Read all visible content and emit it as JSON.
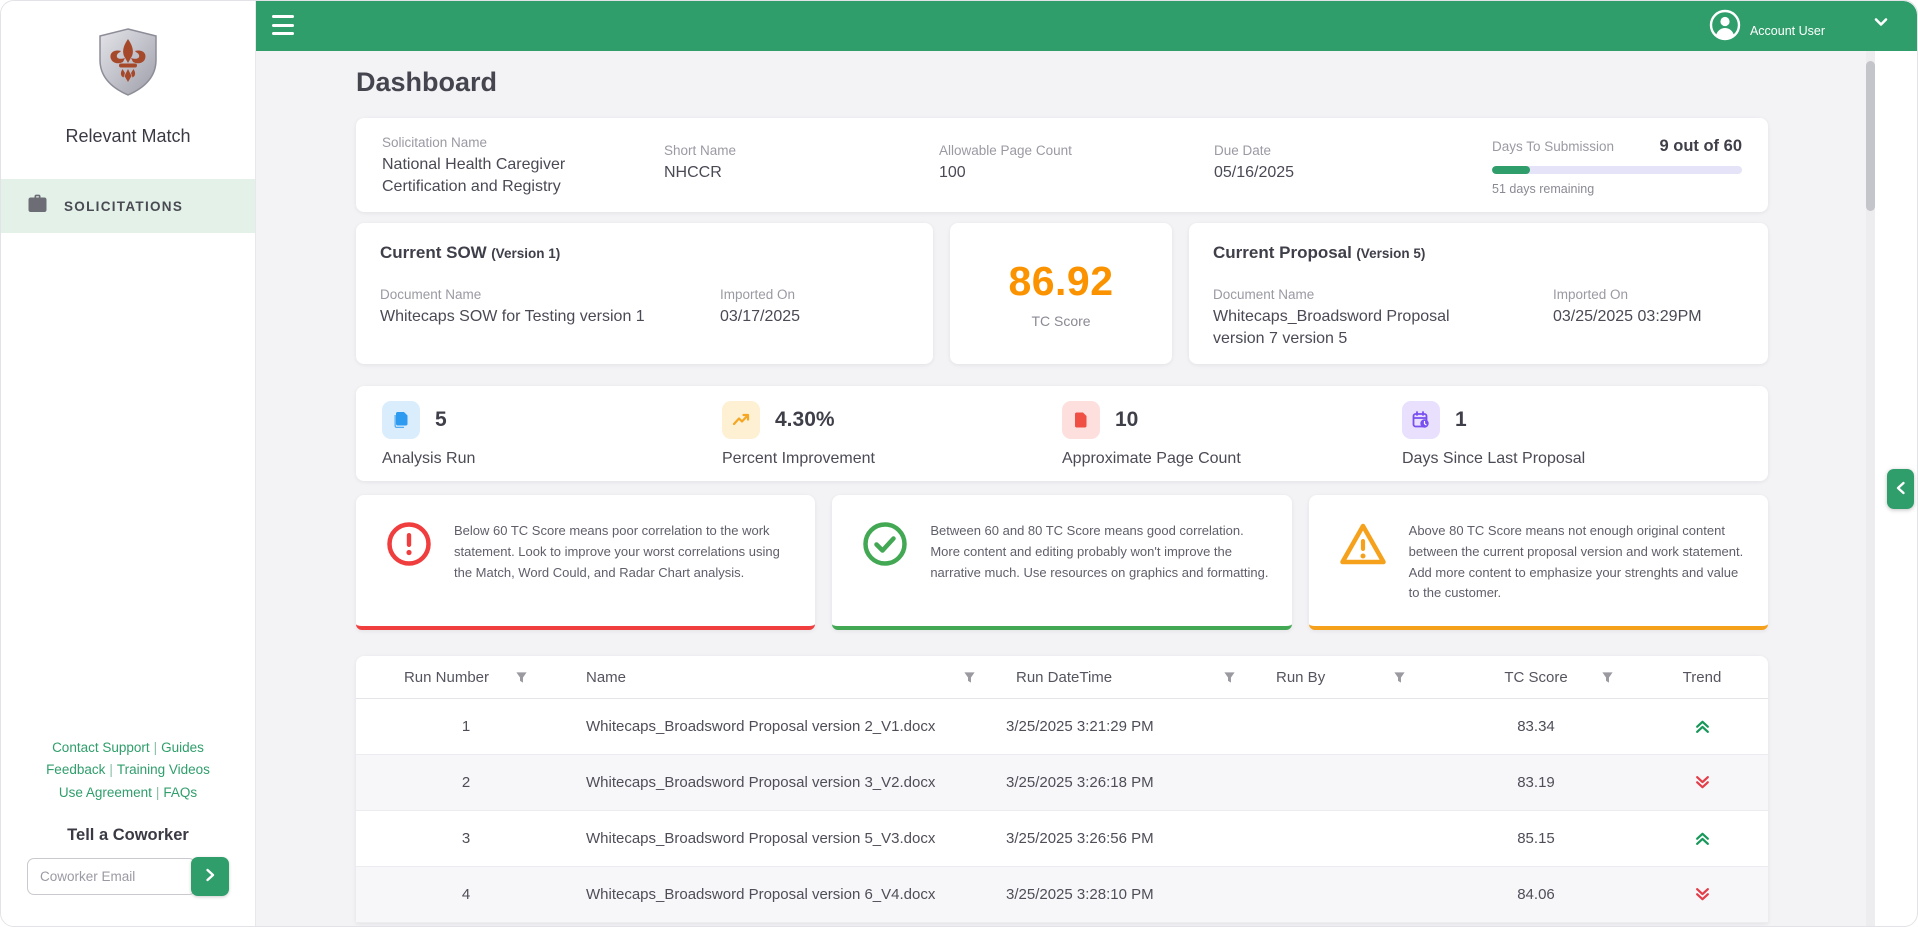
{
  "theme": {
    "accent_green": "#2f9e6b",
    "sidebar_active_bg": "#e3f1e9",
    "tc_score_color": "#fb9300",
    "trend_up_color": "#17985a",
    "trend_down_color": "#e33e4a"
  },
  "sidebar": {
    "brand": "Relevant Match",
    "separator": "|",
    "nav": [
      {
        "label": "SOLICITATIONS"
      }
    ],
    "footer_links": [
      "Contact Support",
      "Guides",
      "Feedback",
      "Training Videos",
      "Use Agreement",
      "FAQs"
    ],
    "tell_a_coworker": {
      "title": "Tell a Coworker",
      "placeholder": "Coworker Email",
      "submit_icon": "chevron-right"
    }
  },
  "header": {
    "account_label": "Account User"
  },
  "page": {
    "title": "Dashboard"
  },
  "solicitation": {
    "fields": [
      {
        "label": "Solicitation Name",
        "value": "National Health Caregiver Certification and Registry"
      },
      {
        "label": "Short Name",
        "value": "NHCCR"
      },
      {
        "label": "Allowable Page Count",
        "value": "100"
      },
      {
        "label": "Due Date",
        "value": "05/16/2025"
      }
    ],
    "days_to_submission": {
      "label": "Days To Submission",
      "value": "9 out of 60",
      "percent": 15,
      "remaining": "51 days remaining"
    }
  },
  "sow": {
    "title": "Current SOW",
    "version": "(Version 1)",
    "doc_label": "Document Name",
    "doc_name": "Whitecaps SOW for Testing version 1",
    "imported_label": "Imported On",
    "imported_on": "03/17/2025"
  },
  "tc_score": {
    "value": "86.92",
    "label": "TC Score"
  },
  "proposal": {
    "title": "Current Proposal",
    "version": "(Version 5)",
    "doc_label": "Document Name",
    "doc_name": "Whitecaps_Broadsword Proposal version 7 version 5",
    "imported_label": "Imported On",
    "imported_on": "03/25/2025 03:29PM"
  },
  "stats": [
    {
      "icon": "copy-document-icon",
      "value": "5",
      "label": "Analysis Run",
      "bg": "#d9edfd",
      "color": "#2f9bf0"
    },
    {
      "icon": "trend-up-icon",
      "value": "4.30%",
      "label": "Percent Improvement",
      "bg": "#fdf0d3",
      "color": "#f5a623"
    },
    {
      "icon": "document-icon",
      "value": "10",
      "label": "Approximate Page Count",
      "bg": "#fddfdd",
      "color": "#f04f43"
    },
    {
      "icon": "calendar-clock-icon",
      "value": "1",
      "label": "Days Since Last Proposal",
      "bg": "#e8e0fd",
      "color": "#7a4ff0"
    }
  ],
  "advisories": [
    {
      "type": "error",
      "color": "#f03e3e",
      "text": "Below 60 TC Score means poor correlation to the work statement. Look to improve your worst correlations using the Match, Word Could, and Radar Chart analysis."
    },
    {
      "type": "success",
      "color": "#43a854",
      "text": "Between 60 and 80 TC Score means good correlation. More content and editing probably won't improve the narrative much. Use resources on graphics and formatting."
    },
    {
      "type": "warning",
      "color": "#f5a11c",
      "text": "Above 80 TC Score means not enough original content between the current proposal version and work statement. Add more content to emphasize your strenghts and value to the customer."
    }
  ],
  "table": {
    "columns": [
      "Run Number",
      "Name",
      "Run DateTime",
      "Run By",
      "TC Score",
      "Trend"
    ],
    "rows": [
      {
        "run": "1",
        "name": "Whitecaps_Broadsword Proposal version 2_V1.docx",
        "datetime": "3/25/2025 3:21:29 PM",
        "run_by": "",
        "score": "83.34",
        "trend": "up"
      },
      {
        "run": "2",
        "name": "Whitecaps_Broadsword Proposal version 3_V2.docx",
        "datetime": "3/25/2025 3:26:18 PM",
        "run_by": "",
        "score": "83.19",
        "trend": "down"
      },
      {
        "run": "3",
        "name": "Whitecaps_Broadsword Proposal version 5_V3.docx",
        "datetime": "3/25/2025 3:26:56 PM",
        "run_by": "",
        "score": "85.15",
        "trend": "up"
      },
      {
        "run": "4",
        "name": "Whitecaps_Broadsword Proposal version 6_V4.docx",
        "datetime": "3/25/2025 3:28:10 PM",
        "run_by": "",
        "score": "84.06",
        "trend": "down"
      }
    ]
  }
}
